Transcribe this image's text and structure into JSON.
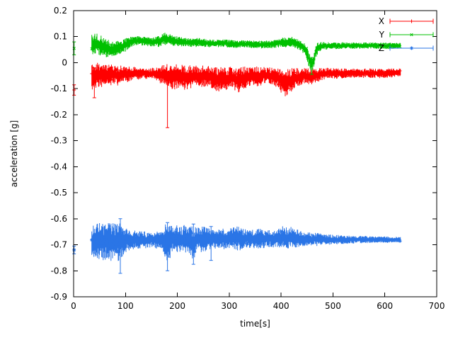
{
  "page": {
    "background": "#ffffff"
  },
  "chart_data": {
    "type": "line",
    "subtype": "errorbar-time-series",
    "title": "",
    "xlabel": "time[s]",
    "ylabel": "acceleration [g]",
    "xlim": [
      0,
      700
    ],
    "ylim": [
      -0.9,
      0.2
    ],
    "xtick_labels": [
      "0",
      "100",
      "200",
      "300",
      "400",
      "500",
      "600",
      "700"
    ],
    "ytick_labels": [
      "0.2",
      "0.1",
      "0",
      "-0.1",
      "-0.2",
      "-0.3",
      "-0.4",
      "-0.5",
      "-0.6",
      "-0.7",
      "-0.8",
      "-0.9"
    ],
    "grid": false,
    "legend_position": "top-right-inside",
    "axis_color": "#000000",
    "series": [
      {
        "name": "X",
        "color": "#ff0000",
        "marker": "plus",
        "seed": 11,
        "range": [
          35,
          630
        ],
        "points": [
          [
            1,
            -0.105,
            0.02
          ]
        ],
        "spikes": [
          [
            40,
            -0.135,
            -0.02
          ],
          [
            181,
            -0.25,
            -0.035
          ]
        ],
        "envelope": [
          [
            35,
            -0.05,
            0.06
          ],
          [
            45,
            -0.05,
            0.05
          ],
          [
            55,
            -0.048,
            0.045
          ],
          [
            65,
            -0.05,
            0.042
          ],
          [
            75,
            -0.045,
            0.04
          ],
          [
            85,
            -0.05,
            0.038
          ],
          [
            95,
            -0.042,
            0.032
          ],
          [
            105,
            -0.045,
            0.03
          ],
          [
            115,
            -0.04,
            0.025
          ],
          [
            125,
            -0.044,
            0.022
          ],
          [
            135,
            -0.04,
            0.02
          ],
          [
            145,
            -0.044,
            0.022
          ],
          [
            155,
            -0.04,
            0.022
          ],
          [
            165,
            -0.046,
            0.03
          ],
          [
            175,
            -0.05,
            0.045
          ],
          [
            185,
            -0.052,
            0.05
          ],
          [
            195,
            -0.055,
            0.05
          ],
          [
            205,
            -0.05,
            0.045
          ],
          [
            215,
            -0.06,
            0.05
          ],
          [
            225,
            -0.055,
            0.045
          ],
          [
            235,
            -0.05,
            0.04
          ],
          [
            245,
            -0.055,
            0.045
          ],
          [
            255,
            -0.05,
            0.04
          ],
          [
            265,
            -0.055,
            0.04
          ],
          [
            275,
            -0.068,
            0.05
          ],
          [
            285,
            -0.058,
            0.045
          ],
          [
            295,
            -0.068,
            0.05
          ],
          [
            305,
            -0.055,
            0.04
          ],
          [
            315,
            -0.068,
            0.05
          ],
          [
            325,
            -0.06,
            0.045
          ],
          [
            335,
            -0.055,
            0.04
          ],
          [
            345,
            -0.05,
            0.035
          ],
          [
            355,
            -0.055,
            0.04
          ],
          [
            365,
            -0.05,
            0.035
          ],
          [
            375,
            -0.048,
            0.03
          ],
          [
            385,
            -0.052,
            0.035
          ],
          [
            395,
            -0.06,
            0.04
          ],
          [
            405,
            -0.078,
            0.055
          ],
          [
            415,
            -0.072,
            0.05
          ],
          [
            425,
            -0.06,
            0.04
          ],
          [
            435,
            -0.055,
            0.035
          ],
          [
            445,
            -0.05,
            0.03
          ],
          [
            455,
            -0.055,
            0.035
          ],
          [
            465,
            -0.05,
            0.03
          ],
          [
            475,
            -0.045,
            0.025
          ],
          [
            490,
            -0.04,
            0.02
          ],
          [
            510,
            -0.042,
            0.02
          ],
          [
            530,
            -0.04,
            0.018
          ],
          [
            550,
            -0.042,
            0.018
          ],
          [
            570,
            -0.04,
            0.018
          ],
          [
            590,
            -0.042,
            0.018
          ],
          [
            610,
            -0.04,
            0.018
          ],
          [
            630,
            -0.04,
            0.018
          ]
        ]
      },
      {
        "name": "Y",
        "color": "#00c000",
        "marker": "cross",
        "seed": 22,
        "range": [
          35,
          630
        ],
        "points": [
          [
            1,
            0.055,
            0.025
          ]
        ],
        "spikes": [
          [
            459,
            -0.045,
            0.02
          ]
        ],
        "envelope": [
          [
            35,
            0.07,
            0.05
          ],
          [
            45,
            0.072,
            0.045
          ],
          [
            55,
            0.062,
            0.042
          ],
          [
            65,
            0.055,
            0.035
          ],
          [
            75,
            0.05,
            0.03
          ],
          [
            85,
            0.055,
            0.03
          ],
          [
            95,
            0.062,
            0.028
          ],
          [
            105,
            0.075,
            0.024
          ],
          [
            115,
            0.082,
            0.02
          ],
          [
            125,
            0.085,
            0.019
          ],
          [
            135,
            0.083,
            0.018
          ],
          [
            145,
            0.08,
            0.018
          ],
          [
            155,
            0.079,
            0.018
          ],
          [
            165,
            0.082,
            0.022
          ],
          [
            175,
            0.092,
            0.025
          ],
          [
            185,
            0.09,
            0.022
          ],
          [
            195,
            0.083,
            0.02
          ],
          [
            210,
            0.079,
            0.018
          ],
          [
            225,
            0.076,
            0.017
          ],
          [
            240,
            0.078,
            0.017
          ],
          [
            255,
            0.075,
            0.016
          ],
          [
            270,
            0.073,
            0.015
          ],
          [
            285,
            0.075,
            0.015
          ],
          [
            300,
            0.073,
            0.015
          ],
          [
            315,
            0.071,
            0.015
          ],
          [
            330,
            0.072,
            0.015
          ],
          [
            345,
            0.07,
            0.015
          ],
          [
            360,
            0.069,
            0.015
          ],
          [
            375,
            0.071,
            0.016
          ],
          [
            390,
            0.074,
            0.018
          ],
          [
            400,
            0.078,
            0.019
          ],
          [
            410,
            0.077,
            0.019
          ],
          [
            420,
            0.081,
            0.019
          ],
          [
            430,
            0.073,
            0.019
          ],
          [
            440,
            0.062,
            0.022
          ],
          [
            448,
            0.045,
            0.026
          ],
          [
            454,
            0.012,
            0.03
          ],
          [
            459,
            -0.008,
            0.028
          ],
          [
            463,
            0.005,
            0.028
          ],
          [
            467,
            0.042,
            0.026
          ],
          [
            472,
            0.06,
            0.02
          ],
          [
            480,
            0.064,
            0.015
          ],
          [
            500,
            0.065,
            0.013
          ],
          [
            525,
            0.066,
            0.012
          ],
          [
            550,
            0.065,
            0.012
          ],
          [
            575,
            0.066,
            0.012
          ],
          [
            600,
            0.065,
            0.012
          ],
          [
            630,
            0.065,
            0.012
          ]
        ]
      },
      {
        "name": "Z",
        "color": "#2a75e6",
        "marker": "star",
        "seed": 33,
        "range": [
          35,
          630
        ],
        "points": [
          [
            1,
            -0.72,
            0.015
          ]
        ],
        "spikes": [
          [
            90,
            -0.81,
            -0.6
          ],
          [
            181,
            -0.8,
            -0.615
          ],
          [
            231,
            -0.775,
            -0.62
          ],
          [
            265,
            -0.76,
            -0.63
          ]
        ],
        "envelope": [
          [
            35,
            -0.69,
            0.06
          ],
          [
            42,
            -0.688,
            0.07
          ],
          [
            49,
            -0.685,
            0.074
          ],
          [
            56,
            -0.69,
            0.07
          ],
          [
            63,
            -0.685,
            0.072
          ],
          [
            70,
            -0.69,
            0.074
          ],
          [
            77,
            -0.686,
            0.07
          ],
          [
            84,
            -0.688,
            0.068
          ],
          [
            90,
            -0.68,
            0.095
          ],
          [
            96,
            -0.685,
            0.06
          ],
          [
            104,
            -0.68,
            0.045
          ],
          [
            112,
            -0.681,
            0.04
          ],
          [
            120,
            -0.682,
            0.036
          ],
          [
            130,
            -0.68,
            0.034
          ],
          [
            140,
            -0.682,
            0.032
          ],
          [
            150,
            -0.68,
            0.03
          ],
          [
            160,
            -0.682,
            0.032
          ],
          [
            170,
            -0.68,
            0.036
          ],
          [
            178,
            -0.688,
            0.07
          ],
          [
            183,
            -0.69,
            0.08
          ],
          [
            190,
            -0.68,
            0.05
          ],
          [
            198,
            -0.676,
            0.053
          ],
          [
            206,
            -0.68,
            0.05
          ],
          [
            214,
            -0.676,
            0.054
          ],
          [
            222,
            -0.68,
            0.058
          ],
          [
            230,
            -0.698,
            0.068
          ],
          [
            238,
            -0.676,
            0.05
          ],
          [
            248,
            -0.68,
            0.05
          ],
          [
            258,
            -0.676,
            0.045
          ],
          [
            268,
            -0.678,
            0.04
          ],
          [
            278,
            -0.676,
            0.038
          ],
          [
            288,
            -0.678,
            0.04
          ],
          [
            298,
            -0.675,
            0.038
          ],
          [
            308,
            -0.67,
            0.045
          ],
          [
            316,
            -0.676,
            0.05
          ],
          [
            326,
            -0.678,
            0.04
          ],
          [
            336,
            -0.675,
            0.036
          ],
          [
            346,
            -0.678,
            0.035
          ],
          [
            356,
            -0.675,
            0.04
          ],
          [
            366,
            -0.678,
            0.035
          ],
          [
            376,
            -0.675,
            0.035
          ],
          [
            386,
            -0.678,
            0.032
          ],
          [
            396,
            -0.674,
            0.036
          ],
          [
            404,
            -0.67,
            0.045
          ],
          [
            412,
            -0.675,
            0.04
          ],
          [
            420,
            -0.671,
            0.04
          ],
          [
            430,
            -0.675,
            0.035
          ],
          [
            440,
            -0.678,
            0.03
          ],
          [
            450,
            -0.68,
            0.028
          ],
          [
            460,
            -0.678,
            0.026
          ],
          [
            470,
            -0.68,
            0.025
          ],
          [
            480,
            -0.678,
            0.022
          ],
          [
            495,
            -0.68,
            0.02
          ],
          [
            510,
            -0.68,
            0.018
          ],
          [
            525,
            -0.68,
            0.016
          ],
          [
            540,
            -0.68,
            0.015
          ],
          [
            555,
            -0.68,
            0.014
          ],
          [
            570,
            -0.68,
            0.013
          ],
          [
            585,
            -0.68,
            0.012
          ],
          [
            600,
            -0.68,
            0.012
          ],
          [
            615,
            -0.68,
            0.011
          ],
          [
            630,
            -0.68,
            0.011
          ]
        ]
      }
    ]
  }
}
